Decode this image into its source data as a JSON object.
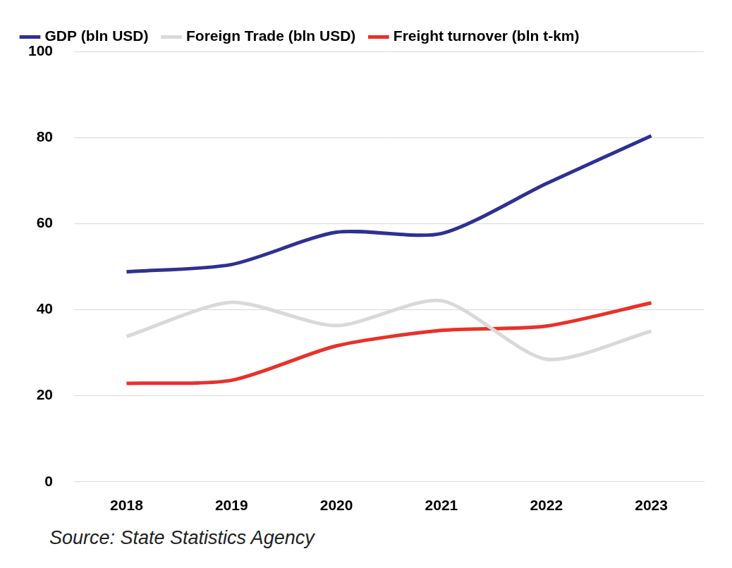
{
  "chart_data": {
    "type": "line",
    "categories": [
      "2018",
      "2019",
      "2020",
      "2021",
      "2022",
      "2023"
    ],
    "series": [
      {
        "name": "GDP (bln USD)",
        "color": "#2E3192",
        "values": [
          48.8,
          50.5,
          58.0,
          57.7,
          69.3,
          80.4
        ]
      },
      {
        "name": "Foreign Trade (bln USD)",
        "color": "#D9D9D9",
        "values": [
          33.8,
          41.7,
          36.3,
          42.1,
          28.5,
          35.0
        ]
      },
      {
        "name": "Freight turnover (bln t-km)",
        "color": "#E8312A",
        "values": [
          22.9,
          23.6,
          31.6,
          35.2,
          36.2,
          41.6
        ]
      }
    ],
    "ylim": [
      0,
      100
    ],
    "yticks": [
      0,
      20,
      40,
      60,
      80,
      100
    ],
    "grid": true,
    "legend": "top-left",
    "annotations": [
      "Source: State Statistics Agency"
    ]
  }
}
